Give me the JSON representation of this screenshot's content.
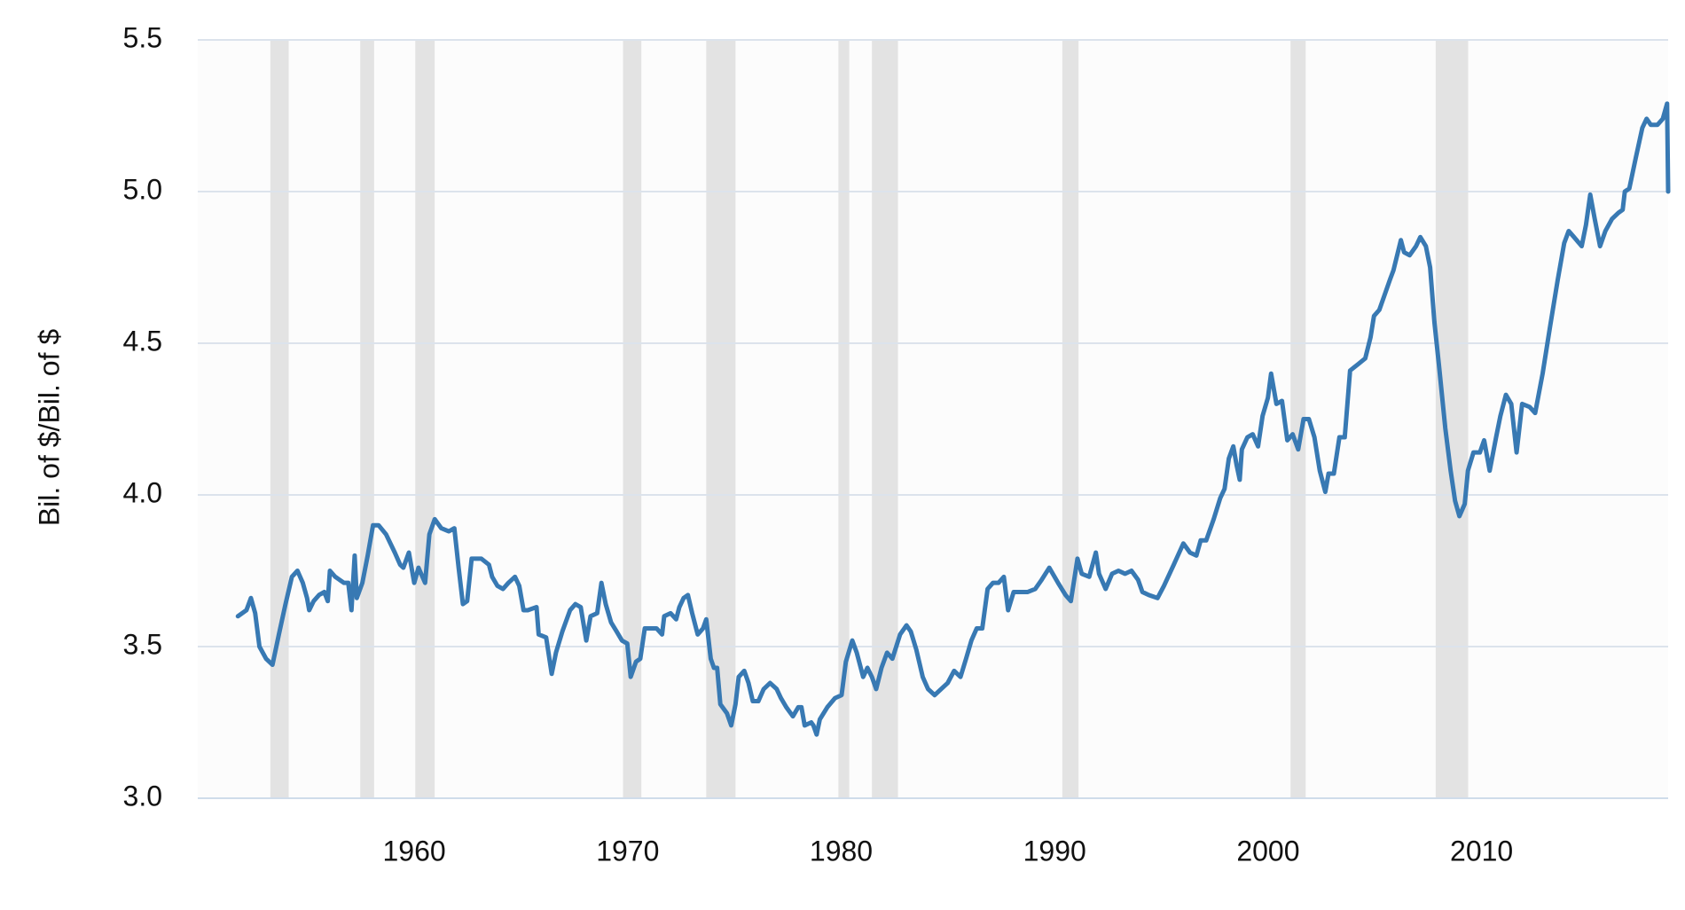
{
  "chart_data": {
    "type": "line",
    "y_label": "Bil. of $/Bil. of $",
    "color": "#3879b3",
    "shade_color": "#e3e3e3",
    "grid": true,
    "xlim": [
      1949.86,
      2018.74
    ],
    "ylim": [
      3.0,
      5.5
    ],
    "xticks": [
      1960,
      1970,
      1980,
      1990,
      2000,
      2010
    ],
    "yticks": [
      {
        "value": 3,
        "label": "3.0"
      },
      3.5,
      {
        "value": 4,
        "label": "4.0"
      },
      4.5,
      {
        "value": 5,
        "label": "5.0"
      },
      5.5
    ],
    "shaded_periods": [
      [
        1953.26,
        1954.12
      ],
      [
        1957.47,
        1958.12
      ],
      [
        1960.05,
        1960.96
      ],
      [
        1969.78,
        1970.64
      ],
      [
        1973.68,
        1975.05
      ],
      [
        1979.87,
        1980.38
      ],
      [
        1981.44,
        1982.66
      ],
      [
        1990.36,
        1991.12
      ],
      [
        2001.05,
        2001.76
      ],
      [
        2007.85,
        2009.37
      ]
    ],
    "x": [
      1951.74,
      1952.14,
      1952.35,
      1952.55,
      1952.75,
      1953.06,
      1953.36,
      1953.66,
      1953.97,
      1954.27,
      1954.53,
      1954.78,
      1954.98,
      1955.08,
      1955.29,
      1955.54,
      1955.79,
      1955.95,
      1956.05,
      1956.3,
      1956.71,
      1956.91,
      1957.06,
      1957.21,
      1957.31,
      1957.57,
      1957.82,
      1958.07,
      1958.33,
      1958.68,
      1959.09,
      1959.34,
      1959.49,
      1959.75,
      1960.0,
      1960.2,
      1960.51,
      1960.71,
      1960.96,
      1961.27,
      1961.62,
      1961.88,
      1962.08,
      1962.28,
      1962.48,
      1962.69,
      1963.14,
      1963.5,
      1963.65,
      1963.9,
      1964.16,
      1964.41,
      1964.72,
      1964.92,
      1965.12,
      1965.32,
      1965.73,
      1965.83,
      1966.18,
      1966.44,
      1966.64,
      1966.94,
      1967.3,
      1967.55,
      1967.8,
      1968.06,
      1968.26,
      1968.57,
      1968.77,
      1968.97,
      1969.22,
      1969.48,
      1969.73,
      1969.98,
      1970.14,
      1970.39,
      1970.59,
      1970.8,
      1971.1,
      1971.35,
      1971.61,
      1971.71,
      1972.01,
      1972.27,
      1972.42,
      1972.62,
      1972.82,
      1973.02,
      1973.28,
      1973.53,
      1973.68,
      1973.89,
      1974.04,
      1974.19,
      1974.34,
      1974.65,
      1974.85,
      1975.05,
      1975.2,
      1975.46,
      1975.66,
      1975.86,
      1976.12,
      1976.37,
      1976.67,
      1976.98,
      1977.18,
      1977.43,
      1977.74,
      1977.99,
      1978.14,
      1978.29,
      1978.6,
      1978.7,
      1978.85,
      1979.0,
      1979.35,
      1979.71,
      1980.02,
      1980.22,
      1980.52,
      1980.73,
      1981.03,
      1981.23,
      1981.44,
      1981.64,
      1981.89,
      1982.15,
      1982.4,
      1982.76,
      1983.06,
      1983.26,
      1983.52,
      1983.82,
      1984.07,
      1984.38,
      1984.68,
      1984.99,
      1985.29,
      1985.59,
      1985.85,
      1986.1,
      1986.35,
      1986.61,
      1986.86,
      1987.11,
      1987.37,
      1987.62,
      1987.82,
      1988.08,
      1988.33,
      1988.74,
      1989.09,
      1989.39,
      1989.75,
      1990.16,
      1990.51,
      1990.76,
      1991.07,
      1991.27,
      1991.62,
      1991.93,
      1992.08,
      1992.39,
      1992.69,
      1992.99,
      1993.3,
      1993.6,
      1993.91,
      1994.11,
      1994.41,
      1994.82,
      1995.12,
      1995.58,
      1996.03,
      1996.34,
      1996.64,
      1996.84,
      1997.1,
      1997.45,
      1997.76,
      1997.96,
      1998.16,
      1998.37,
      1998.52,
      1998.67,
      1998.77,
      1999.03,
      1999.28,
      1999.53,
      1999.74,
      1999.99,
      2000.14,
      2000.39,
      2000.65,
      2000.9,
      2001.15,
      2001.41,
      2001.66,
      2001.91,
      2002.17,
      2002.42,
      2002.68,
      2002.83,
      2003.08,
      2003.34,
      2003.59,
      2003.84,
      2004.2,
      2004.55,
      2004.8,
      2004.96,
      2005.21,
      2005.46,
      2005.71,
      2005.87,
      2006.22,
      2006.37,
      2006.63,
      2006.93,
      2007.13,
      2007.39,
      2007.59,
      2007.79,
      2008.0,
      2008.3,
      2008.55,
      2008.76,
      2008.96,
      2009.21,
      2009.36,
      2009.62,
      2009.92,
      2010.12,
      2010.38,
      2010.68,
      2010.88,
      2011.14,
      2011.39,
      2011.64,
      2011.9,
      2012.25,
      2012.51,
      2012.86,
      2013.22,
      2013.57,
      2013.87,
      2014.08,
      2014.33,
      2014.69,
      2014.89,
      2015.09,
      2015.3,
      2015.55,
      2015.8,
      2016.11,
      2016.41,
      2016.61,
      2016.71,
      2016.92,
      2017.22,
      2017.53,
      2017.73,
      2017.93,
      2018.24,
      2018.49,
      2018.69,
      2018.74
    ],
    "values": [
      3.6,
      3.62,
      3.66,
      3.61,
      3.5,
      3.46,
      3.44,
      3.54,
      3.64,
      3.73,
      3.75,
      3.71,
      3.66,
      3.62,
      3.65,
      3.67,
      3.68,
      3.65,
      3.75,
      3.73,
      3.71,
      3.71,
      3.62,
      3.8,
      3.66,
      3.71,
      3.8,
      3.9,
      3.9,
      3.87,
      3.81,
      3.77,
      3.76,
      3.81,
      3.71,
      3.76,
      3.71,
      3.87,
      3.92,
      3.89,
      3.88,
      3.89,
      3.76,
      3.64,
      3.65,
      3.79,
      3.79,
      3.77,
      3.73,
      3.7,
      3.69,
      3.71,
      3.73,
      3.7,
      3.62,
      3.62,
      3.63,
      3.54,
      3.53,
      3.41,
      3.48,
      3.55,
      3.62,
      3.64,
      3.63,
      3.52,
      3.6,
      3.61,
      3.71,
      3.64,
      3.58,
      3.55,
      3.52,
      3.51,
      3.4,
      3.45,
      3.46,
      3.56,
      3.56,
      3.56,
      3.54,
      3.6,
      3.61,
      3.59,
      3.63,
      3.66,
      3.67,
      3.61,
      3.54,
      3.56,
      3.59,
      3.46,
      3.43,
      3.43,
      3.31,
      3.28,
      3.24,
      3.31,
      3.4,
      3.42,
      3.38,
      3.32,
      3.32,
      3.36,
      3.38,
      3.36,
      3.33,
      3.3,
      3.27,
      3.3,
      3.3,
      3.24,
      3.25,
      3.24,
      3.21,
      3.26,
      3.3,
      3.33,
      3.34,
      3.45,
      3.52,
      3.48,
      3.4,
      3.43,
      3.4,
      3.36,
      3.43,
      3.48,
      3.46,
      3.54,
      3.57,
      3.55,
      3.49,
      3.4,
      3.36,
      3.34,
      3.36,
      3.38,
      3.42,
      3.4,
      3.46,
      3.52,
      3.56,
      3.56,
      3.69,
      3.71,
      3.71,
      3.73,
      3.62,
      3.68,
      3.68,
      3.68,
      3.69,
      3.72,
      3.76,
      3.71,
      3.67,
      3.65,
      3.79,
      3.74,
      3.73,
      3.81,
      3.74,
      3.69,
      3.74,
      3.75,
      3.74,
      3.75,
      3.72,
      3.68,
      3.67,
      3.66,
      3.7,
      3.77,
      3.84,
      3.81,
      3.8,
      3.85,
      3.85,
      3.92,
      3.99,
      4.02,
      4.12,
      4.16,
      4.1,
      4.05,
      4.15,
      4.19,
      4.2,
      4.16,
      4.26,
      4.32,
      4.4,
      4.3,
      4.31,
      4.18,
      4.2,
      4.15,
      4.25,
      4.25,
      4.19,
      4.08,
      4.01,
      4.07,
      4.07,
      4.19,
      4.19,
      4.41,
      4.43,
      4.45,
      4.52,
      4.59,
      4.61,
      4.66,
      4.71,
      4.74,
      4.84,
      4.8,
      4.79,
      4.82,
      4.85,
      4.82,
      4.75,
      4.57,
      4.43,
      4.22,
      4.08,
      3.98,
      3.93,
      3.97,
      4.08,
      4.14,
      4.14,
      4.18,
      4.08,
      4.19,
      4.26,
      4.33,
      4.3,
      4.14,
      4.3,
      4.29,
      4.27,
      4.4,
      4.56,
      4.71,
      4.83,
      4.87,
      4.85,
      4.82,
      4.89,
      4.99,
      4.91,
      4.82,
      4.87,
      4.91,
      4.93,
      4.94,
      5.0,
      5.01,
      5.11,
      5.21,
      5.24,
      5.22,
      5.22,
      5.24,
      5.29,
      5.0
    ]
  }
}
